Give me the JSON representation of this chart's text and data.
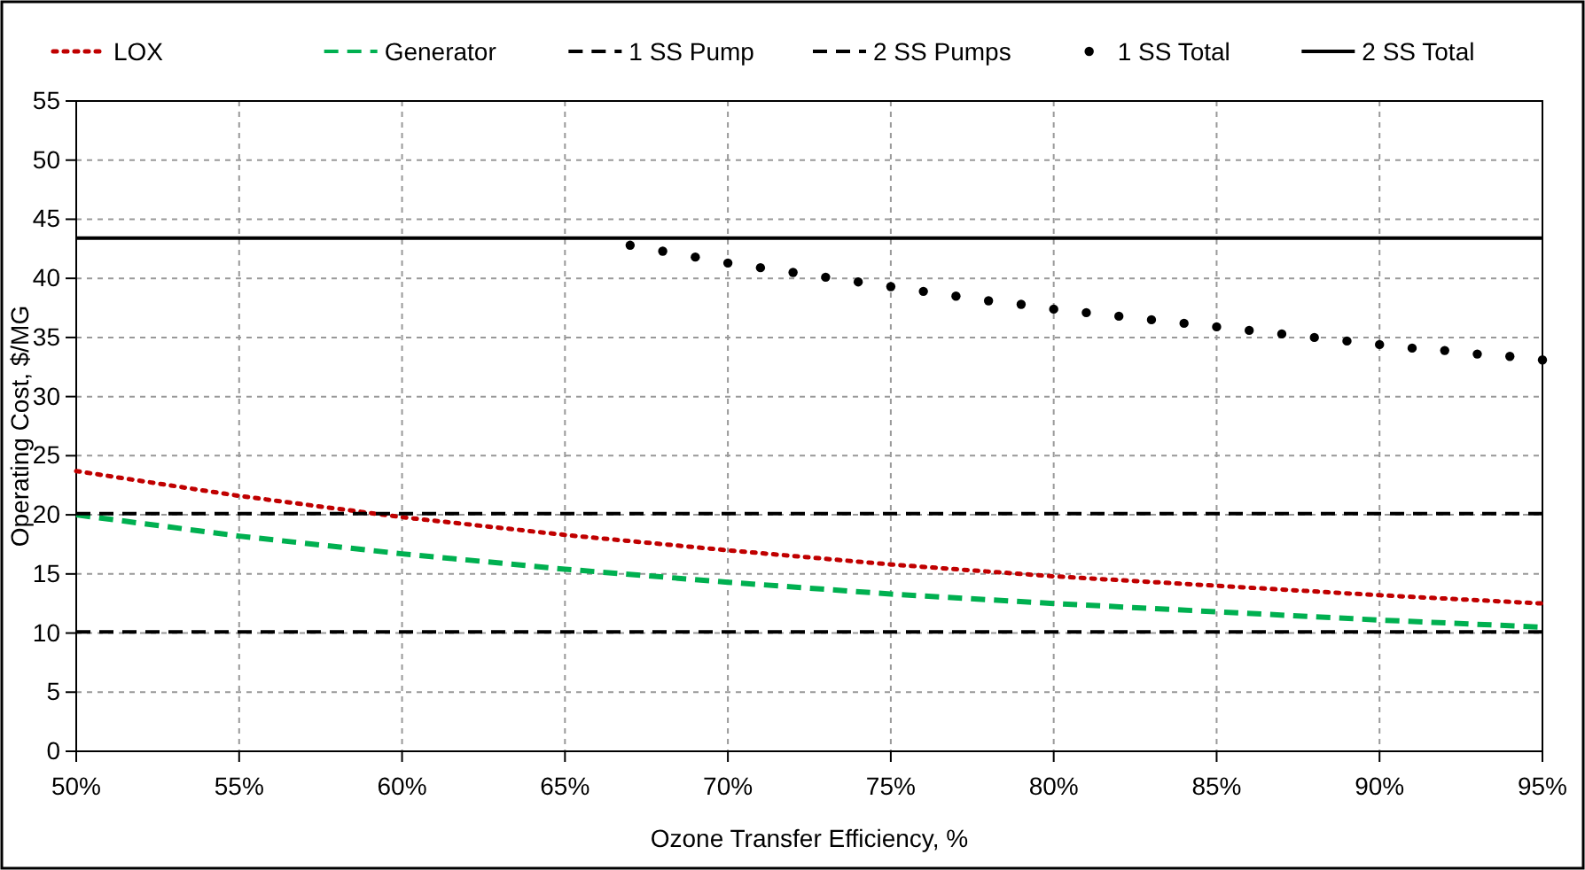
{
  "chart_data": {
    "type": "line",
    "xlabel": "Ozone Transfer Efficiency, %",
    "ylabel": "Operating Cost, $/MG",
    "xlim": [
      50,
      95
    ],
    "xticks": [
      {
        "value": 50,
        "label": "50%"
      },
      {
        "value": 55,
        "label": "55%"
      },
      {
        "value": 60,
        "label": "60%"
      },
      {
        "value": 65,
        "label": "65%"
      },
      {
        "value": 70,
        "label": "70%"
      },
      {
        "value": 75,
        "label": "75%"
      },
      {
        "value": 80,
        "label": "80%"
      },
      {
        "value": 85,
        "label": "85%"
      },
      {
        "value": 90,
        "label": "90%"
      },
      {
        "value": 95,
        "label": "95%"
      }
    ],
    "ylim": [
      0,
      55
    ],
    "yticks": [
      0,
      5,
      10,
      15,
      20,
      25,
      30,
      35,
      40,
      45,
      50,
      55
    ],
    "grid": true,
    "legend": "top",
    "series": [
      {
        "name": "LOX",
        "type": "line",
        "line_style": "dotted",
        "color": "#c00000",
        "x": [
          50,
          55,
          60,
          65,
          70,
          75,
          80,
          85,
          90,
          95
        ],
        "values": [
          23.7,
          21.6,
          19.8,
          18.3,
          17.0,
          15.8,
          14.8,
          14.0,
          13.2,
          12.5
        ]
      },
      {
        "name": "Generator",
        "type": "line",
        "line_style": "dashed",
        "color": "#00b050",
        "x": [
          50,
          55,
          60,
          65,
          70,
          75,
          80,
          85,
          90,
          95
        ],
        "values": [
          20.0,
          18.2,
          16.7,
          15.4,
          14.3,
          13.3,
          12.5,
          11.8,
          11.1,
          10.5
        ]
      },
      {
        "name": "1 SS Pump",
        "type": "line",
        "line_style": "dashed",
        "color": "#000000",
        "x": [
          50,
          95
        ],
        "values": [
          10.1,
          10.1
        ]
      },
      {
        "name": "2 SS Pumps",
        "type": "line",
        "line_style": "dashed",
        "color": "#000000",
        "x": [
          50,
          95
        ],
        "values": [
          20.1,
          20.1
        ]
      },
      {
        "name": "1 SS Total",
        "type": "scatter",
        "marker": "circle",
        "color": "#000000",
        "x": [
          67,
          68,
          69,
          70,
          71,
          72,
          73,
          74,
          75,
          76,
          77,
          78,
          79,
          80,
          81,
          82,
          83,
          84,
          85,
          86,
          87,
          88,
          89,
          90,
          91,
          92,
          93,
          94,
          95
        ],
        "values": [
          42.8,
          42.3,
          41.8,
          41.3,
          40.9,
          40.5,
          40.1,
          39.7,
          39.3,
          38.9,
          38.5,
          38.1,
          37.8,
          37.4,
          37.1,
          36.8,
          36.5,
          36.2,
          35.9,
          35.6,
          35.3,
          35.0,
          34.7,
          34.4,
          34.1,
          33.9,
          33.6,
          33.4,
          33.1
        ]
      },
      {
        "name": "2 SS Total",
        "type": "line",
        "line_style": "solid",
        "color": "#000000",
        "x": [
          50,
          95
        ],
        "values": [
          43.4,
          43.4
        ]
      }
    ]
  }
}
